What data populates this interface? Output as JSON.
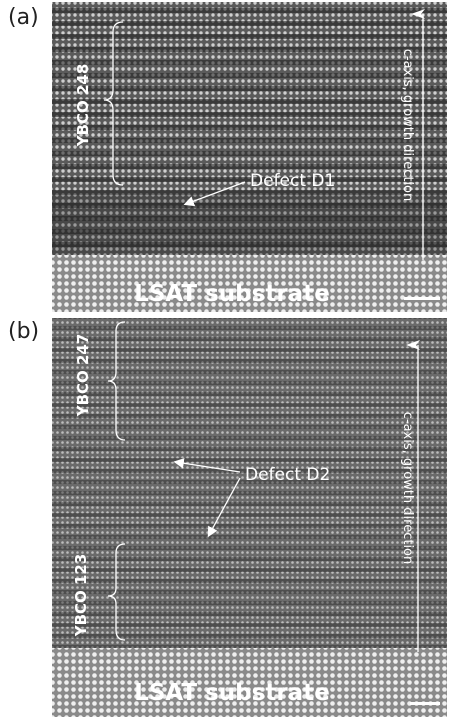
{
  "panels": [
    {
      "label": "(a)",
      "film": "YBCO 248",
      "defect": "Defect D1",
      "axis": "c-axis, growth direction",
      "substrate": "LSAT substrate"
    },
    {
      "label": "(b)",
      "film": "YBCO 247",
      "defect": "Defect D2",
      "film2": "YBCO 123",
      "axis": "c-axis, growth direction",
      "substrate": "LSAT substrate"
    }
  ]
}
